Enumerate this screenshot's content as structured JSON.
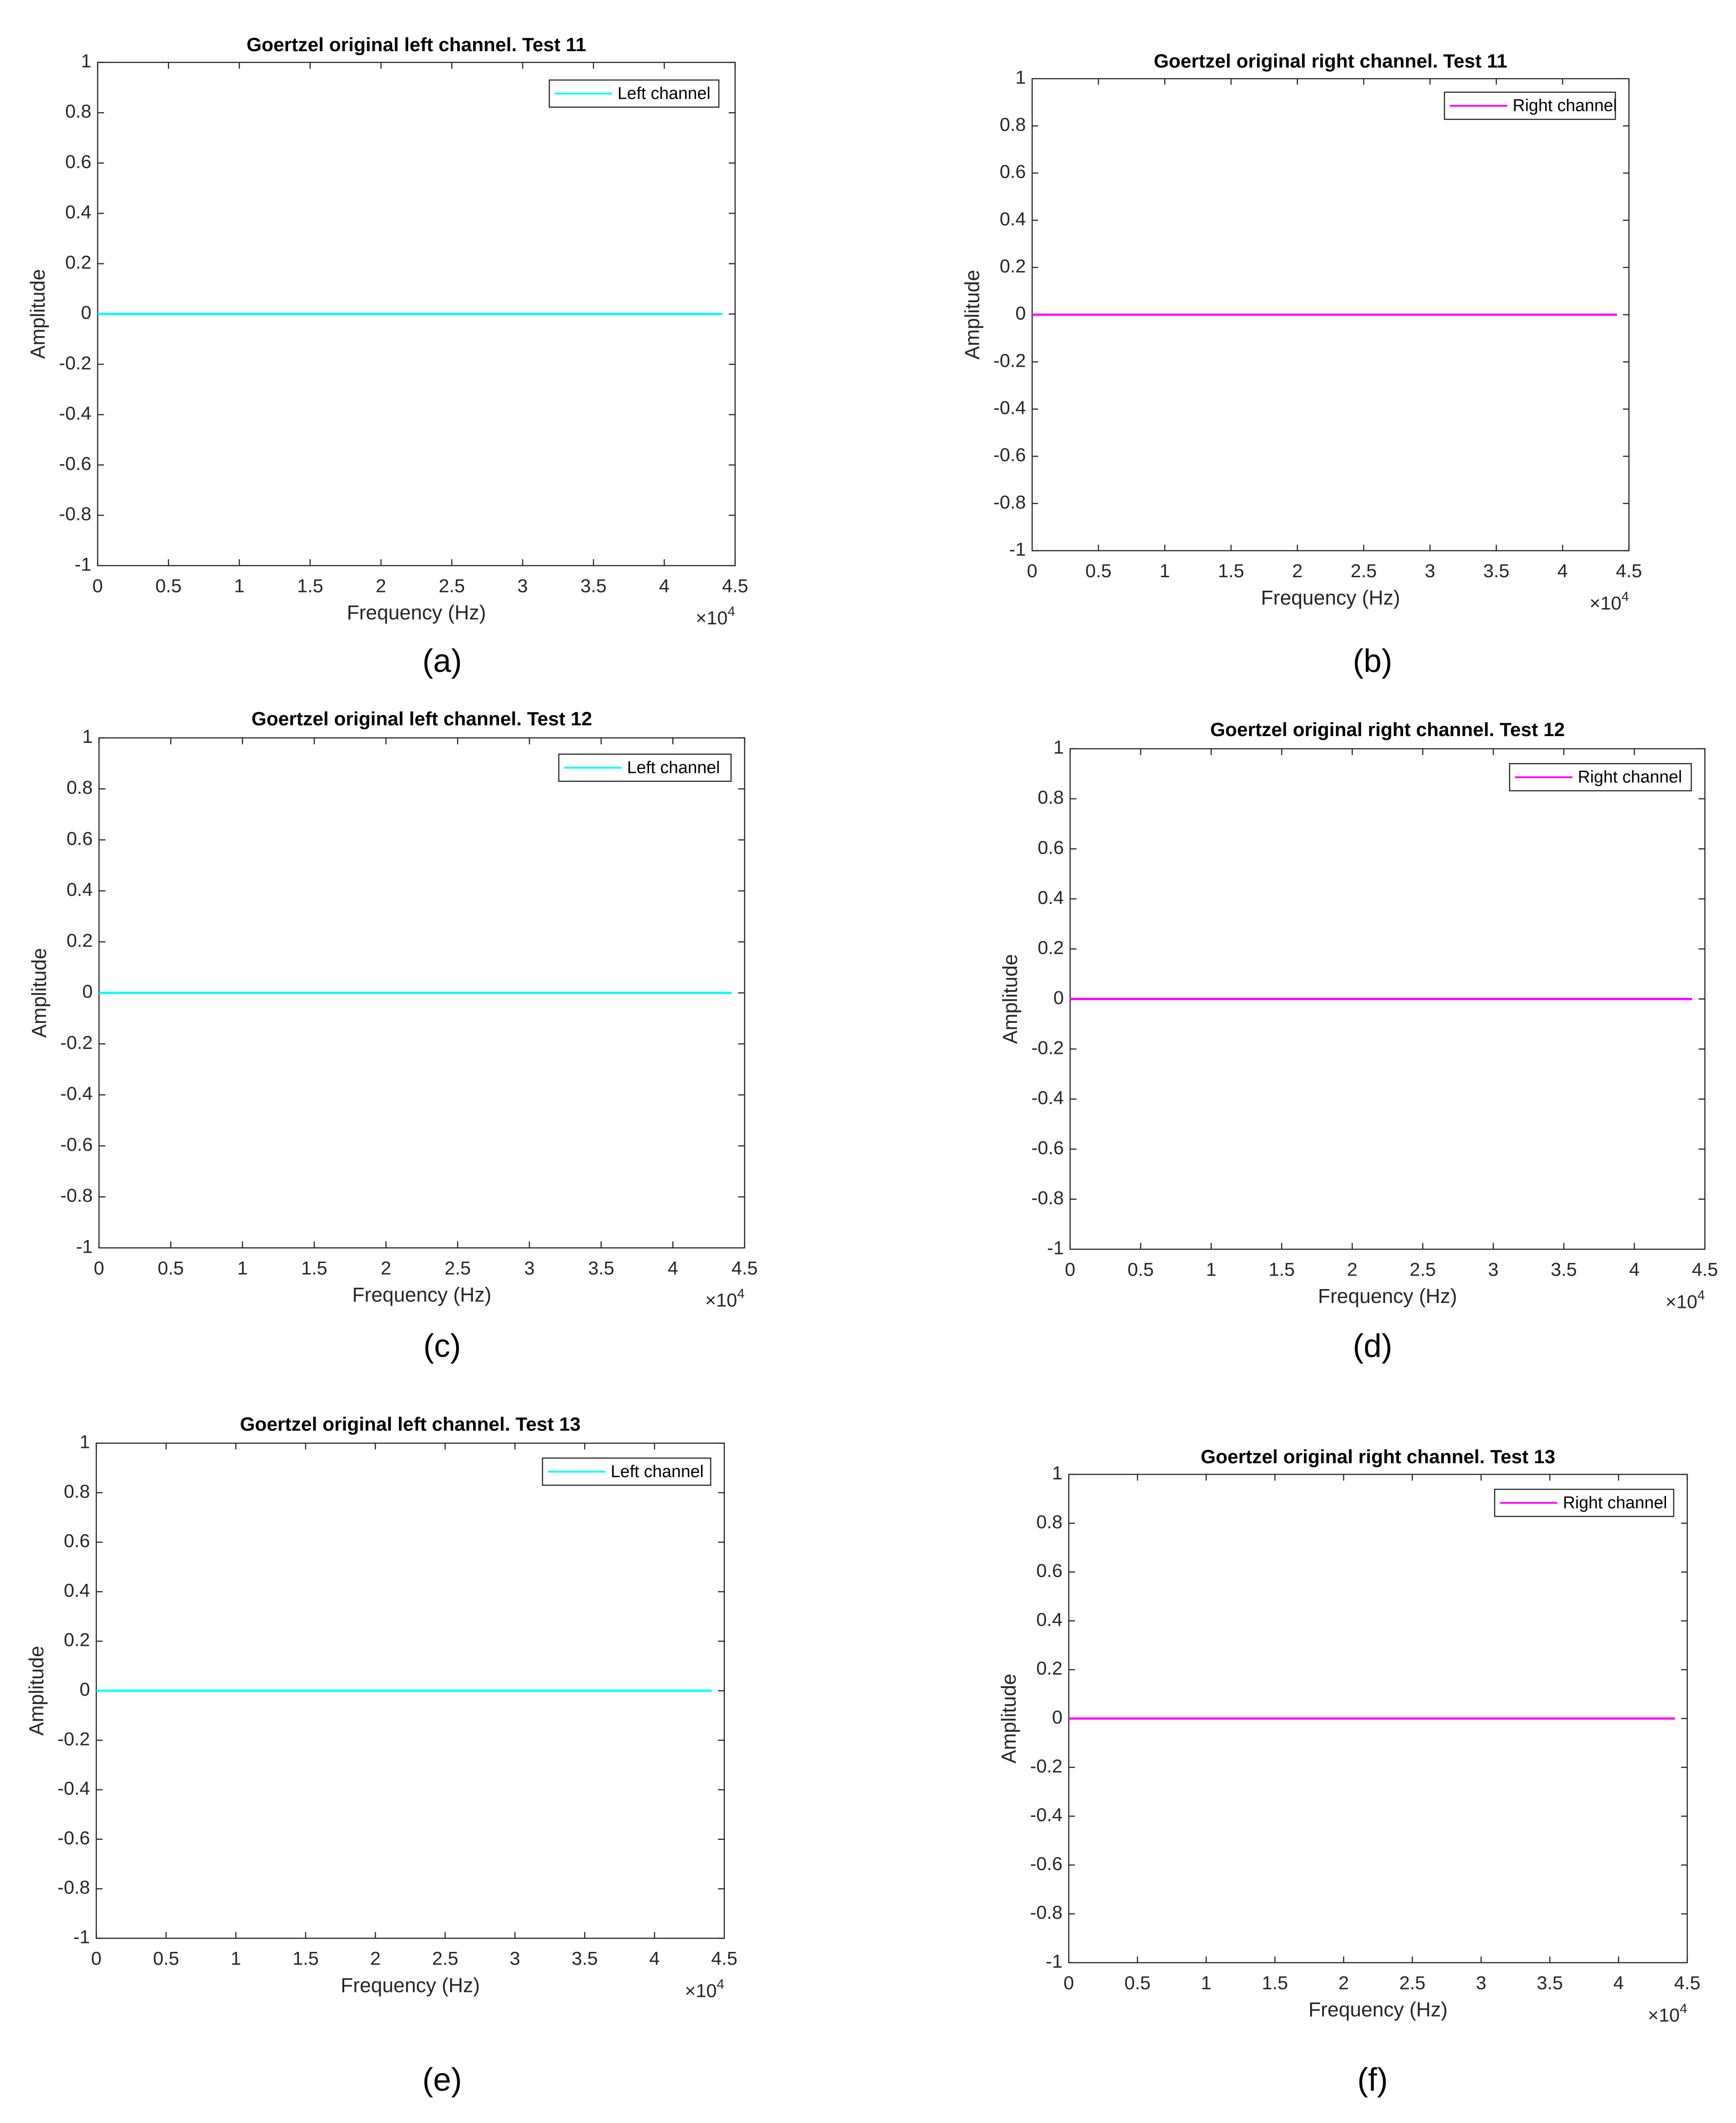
{
  "chart_data": [
    {
      "type": "line",
      "title": "Goertzel original left channel. Test 11",
      "caption": "(a)",
      "xlabel": "Frequency (Hz)",
      "ylabel": "Amplitude",
      "x_scale_label": "×10",
      "x_scale_exponent": "4",
      "x": [
        0,
        4.41
      ],
      "series": [
        {
          "name": "Left channel",
          "color": "#00ffff",
          "values": [
            0,
            0
          ]
        }
      ],
      "xlim": [
        0,
        4.5
      ],
      "xticks": [
        0,
        0.5,
        1,
        1.5,
        2,
        2.5,
        3,
        3.5,
        4,
        4.5
      ],
      "ylim": [
        -1,
        1
      ],
      "yticks": [
        -1,
        -0.8,
        -0.6,
        -0.4,
        -0.2,
        0,
        0.2,
        0.4,
        0.6,
        0.8,
        1
      ],
      "legend": "upper right"
    },
    {
      "type": "line",
      "title": "Goertzel original right channel. Test 11",
      "caption": "(b)",
      "xlabel": "Frequency (Hz)",
      "ylabel": "Amplitude",
      "x_scale_label": "×10",
      "x_scale_exponent": "4",
      "x": [
        0,
        4.41
      ],
      "series": [
        {
          "name": "Right channel",
          "color": "#ff00ff",
          "values": [
            0,
            0
          ]
        }
      ],
      "xlim": [
        0,
        4.5
      ],
      "xticks": [
        0,
        0.5,
        1,
        1.5,
        2,
        2.5,
        3,
        3.5,
        4,
        4.5
      ],
      "ylim": [
        -1,
        1
      ],
      "yticks": [
        -1,
        -0.8,
        -0.6,
        -0.4,
        -0.2,
        0,
        0.2,
        0.4,
        0.6,
        0.8,
        1
      ],
      "legend": "upper right"
    },
    {
      "type": "line",
      "title": "Goertzel original left channel. Test 12",
      "caption": "(c)",
      "xlabel": "Frequency (Hz)",
      "ylabel": "Amplitude",
      "x_scale_label": "×10",
      "x_scale_exponent": "4",
      "x": [
        0,
        4.41
      ],
      "series": [
        {
          "name": "Left channel",
          "color": "#00ffff",
          "values": [
            0,
            0
          ]
        }
      ],
      "xlim": [
        0,
        4.5
      ],
      "xticks": [
        0,
        0.5,
        1,
        1.5,
        2,
        2.5,
        3,
        3.5,
        4,
        4.5
      ],
      "ylim": [
        -1,
        1
      ],
      "yticks": [
        -1,
        -0.8,
        -0.6,
        -0.4,
        -0.2,
        0,
        0.2,
        0.4,
        0.6,
        0.8,
        1
      ],
      "legend": "upper right"
    },
    {
      "type": "line",
      "title": "Goertzel original right channel. Test 12",
      "caption": "(d)",
      "xlabel": "Frequency (Hz)",
      "ylabel": "Amplitude",
      "x_scale_label": "×10",
      "x_scale_exponent": "4",
      "x": [
        0,
        4.41
      ],
      "series": [
        {
          "name": "Right channel",
          "color": "#ff00ff",
          "values": [
            0,
            0
          ]
        }
      ],
      "xlim": [
        0,
        4.5
      ],
      "xticks": [
        0,
        0.5,
        1,
        1.5,
        2,
        2.5,
        3,
        3.5,
        4,
        4.5
      ],
      "ylim": [
        -1,
        1
      ],
      "yticks": [
        -1,
        -0.8,
        -0.6,
        -0.4,
        -0.2,
        0,
        0.2,
        0.4,
        0.6,
        0.8,
        1
      ],
      "legend": "upper right"
    },
    {
      "type": "line",
      "title": "Goertzel original left channel. Test 13",
      "caption": "(e)",
      "xlabel": "Frequency (Hz)",
      "ylabel": "Amplitude",
      "x_scale_label": "×10",
      "x_scale_exponent": "4",
      "x": [
        0,
        4.41
      ],
      "series": [
        {
          "name": "Left channel",
          "color": "#00ffff",
          "values": [
            0,
            0
          ]
        }
      ],
      "xlim": [
        0,
        4.5
      ],
      "xticks": [
        0,
        0.5,
        1,
        1.5,
        2,
        2.5,
        3,
        3.5,
        4,
        4.5
      ],
      "ylim": [
        -1,
        1
      ],
      "yticks": [
        -1,
        -0.8,
        -0.6,
        -0.4,
        -0.2,
        0,
        0.2,
        0.4,
        0.6,
        0.8,
        1
      ],
      "legend": "upper right"
    },
    {
      "type": "line",
      "title": "Goertzel original right channel. Test 13",
      "caption": "(f)",
      "xlabel": "Frequency (Hz)",
      "ylabel": "Amplitude",
      "x_scale_label": "×10",
      "x_scale_exponent": "4",
      "x": [
        0,
        4.41
      ],
      "series": [
        {
          "name": "Right channel",
          "color": "#ff00ff",
          "values": [
            0,
            0
          ]
        }
      ],
      "xlim": [
        0,
        4.5
      ],
      "xticks": [
        0,
        0.5,
        1,
        1.5,
        2,
        2.5,
        3,
        3.5,
        4,
        4.5
      ],
      "ylim": [
        -1,
        1
      ],
      "yticks": [
        -1,
        -0.8,
        -0.6,
        -0.4,
        -0.2,
        0,
        0.2,
        0.4,
        0.6,
        0.8,
        1
      ],
      "legend": "upper right"
    }
  ]
}
